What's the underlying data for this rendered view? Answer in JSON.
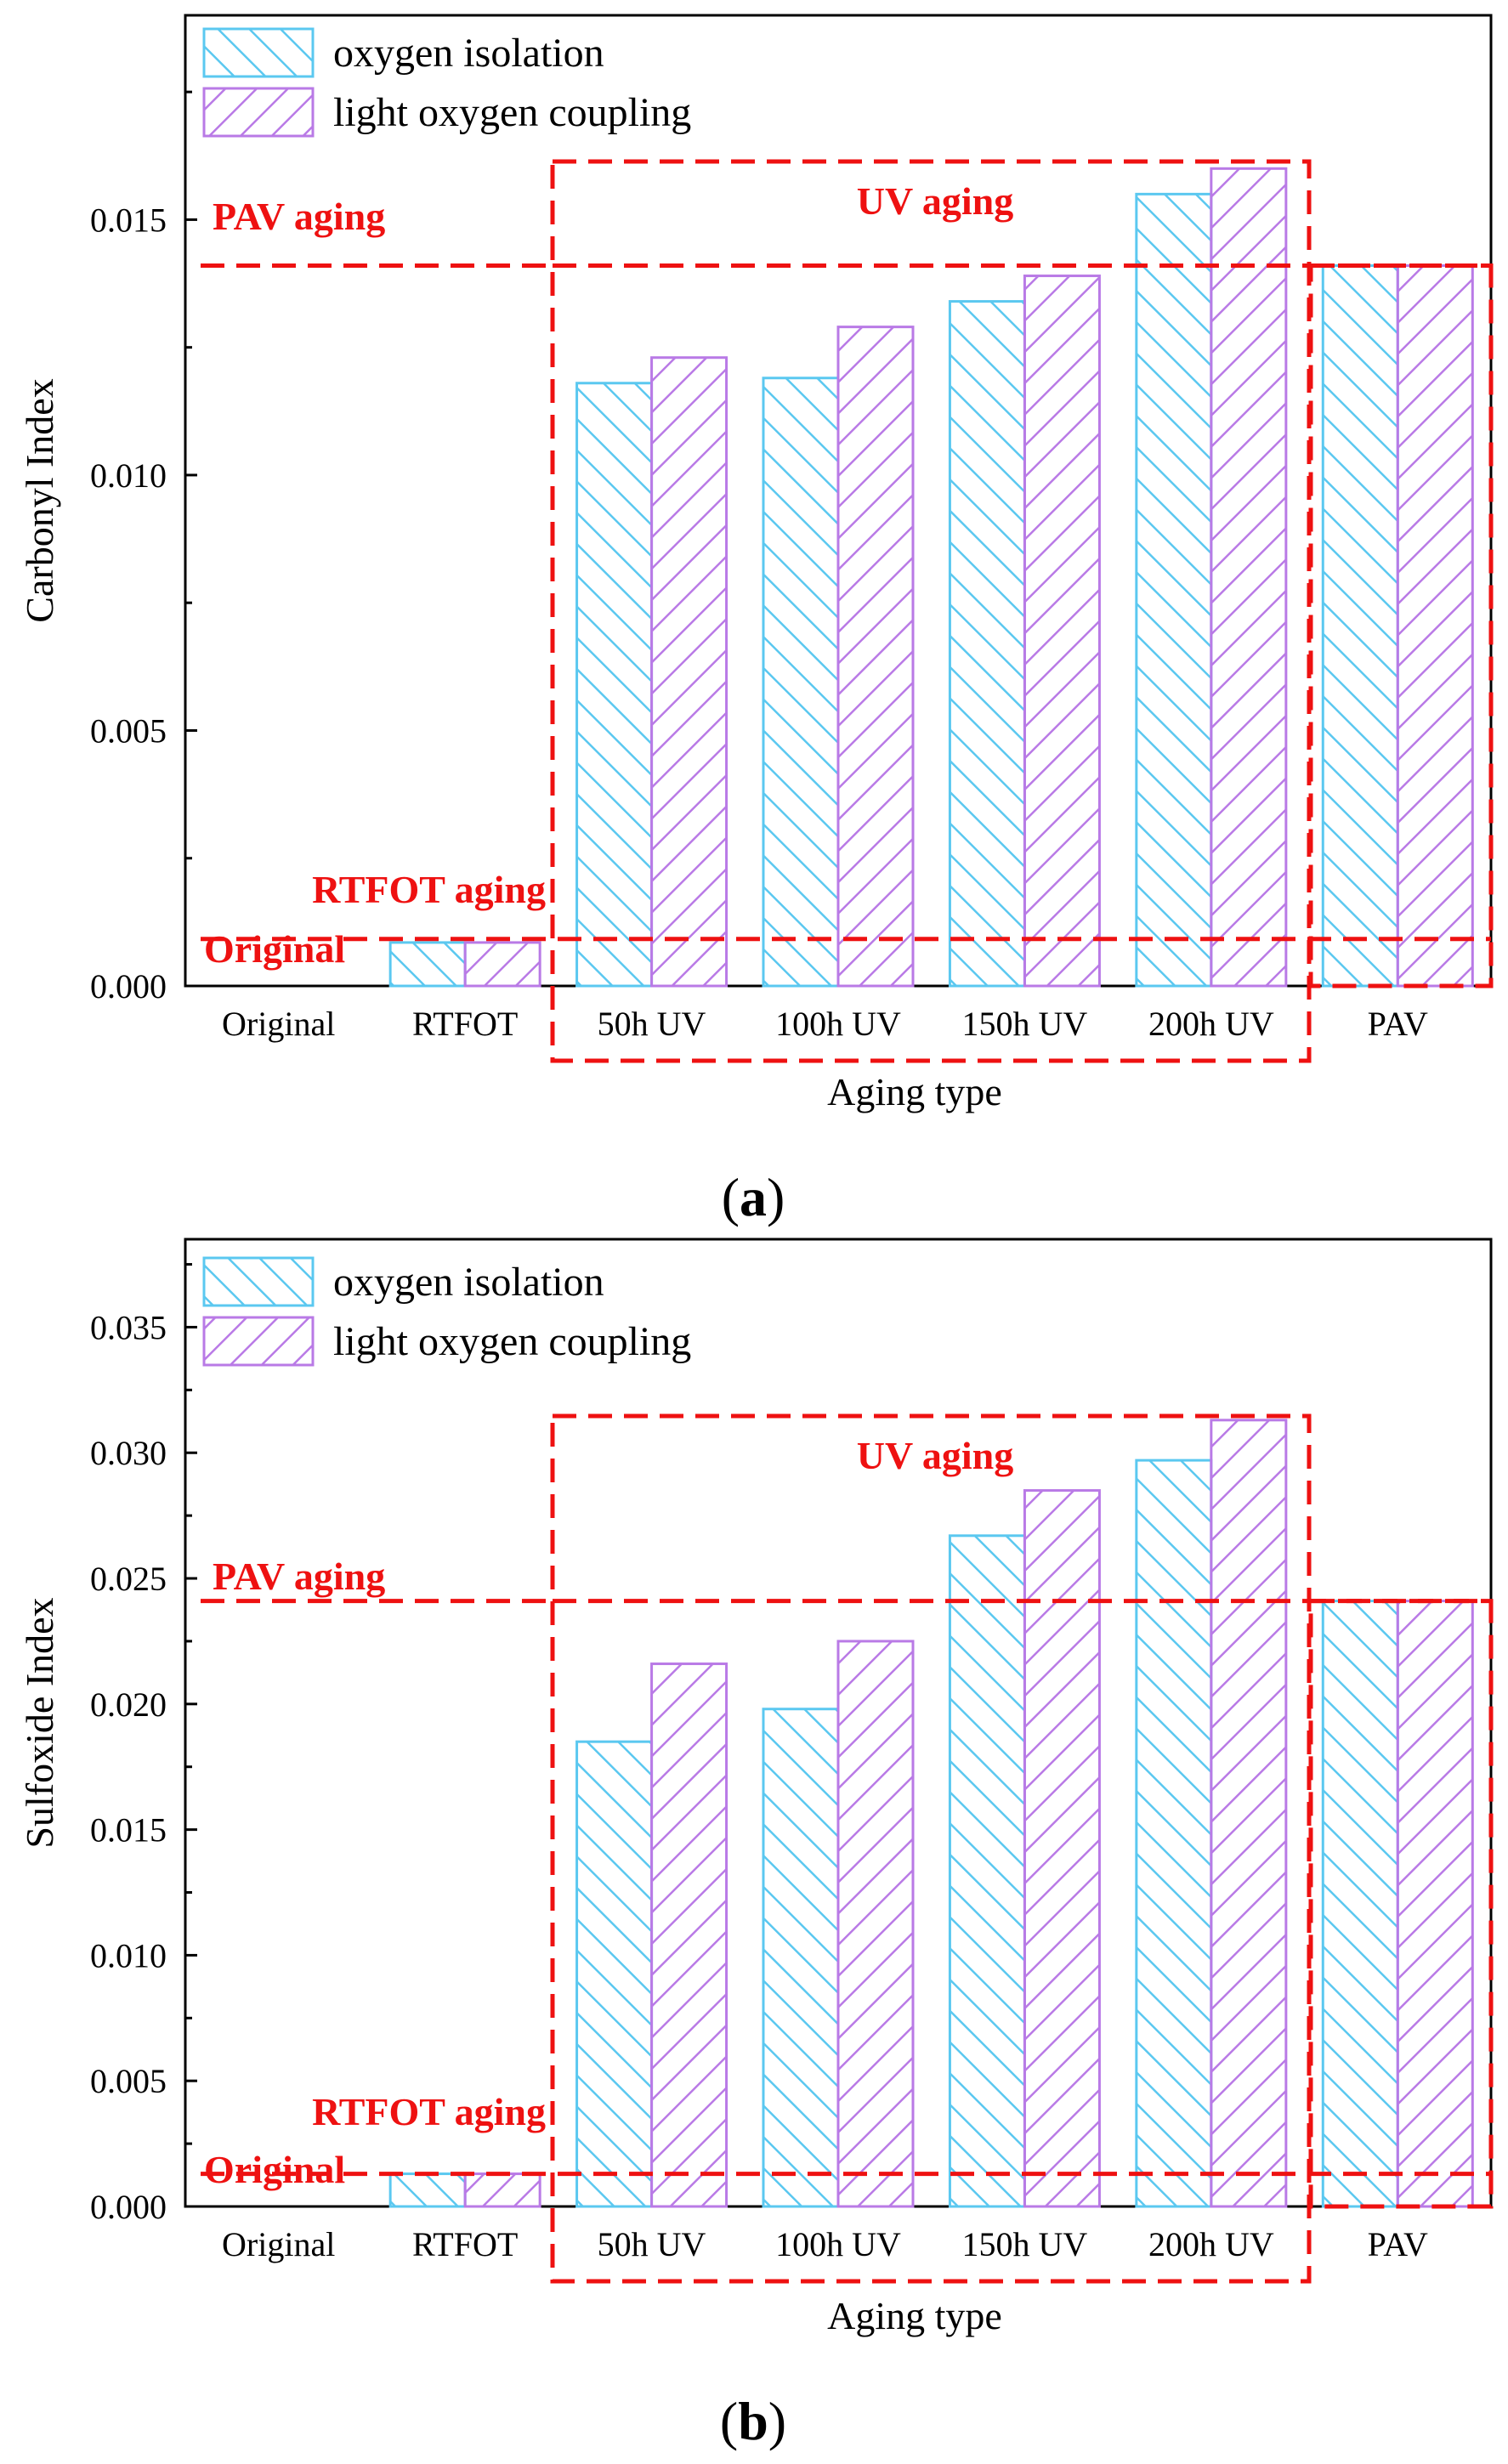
{
  "colors": {
    "oxygen_isolation": "#5bc8f0",
    "light_oxygen_coupling": "#b97ae6",
    "annotation": "#ee1111",
    "axis": "#000000"
  },
  "chart_data": [
    {
      "panel_label": "a",
      "type": "bar",
      "xlabel": "Aging type",
      "ylabel": "Carbonyl Index",
      "ylim": [
        0,
        0.019
      ],
      "yticks": [
        "0.000",
        "0.005",
        "0.010",
        "0.015"
      ],
      "ytick_values": [
        0,
        0.005,
        0.01,
        0.015
      ],
      "categories": [
        "Original",
        "RTFOT",
        "50h UV",
        "100h UV",
        "150h UV",
        "200h UV",
        "PAV"
      ],
      "series": [
        {
          "name": "oxygen isolation",
          "values": [
            0,
            0.00085,
            0.0118,
            0.0119,
            0.0134,
            0.0155,
            0.0141
          ]
        },
        {
          "name": "light oxygen coupling",
          "values": [
            0,
            0.00085,
            0.0123,
            0.0129,
            0.0139,
            0.016,
            0.0141
          ]
        }
      ],
      "legend": [
        "oxygen isolation",
        "light oxygen coupling"
      ],
      "legend_position": "top-left",
      "annotations": {
        "pav_aging": {
          "text": "PAV aging",
          "value": 0.0141
        },
        "uv_aging": {
          "text": "UV aging"
        },
        "rtfot_aging": {
          "text": "RTFOT aging"
        },
        "original": {
          "text": "Original",
          "value": 0.00092
        }
      }
    },
    {
      "panel_label": "b",
      "type": "bar",
      "xlabel": "Aging type",
      "ylabel": "Sulfoxide Index",
      "ylim": [
        0,
        0.0385
      ],
      "yticks": [
        "0.000",
        "0.005",
        "0.010",
        "0.015",
        "0.020",
        "0.025",
        "0.030",
        "0.035"
      ],
      "ytick_values": [
        0,
        0.005,
        0.01,
        0.015,
        0.02,
        0.025,
        0.03,
        0.035
      ],
      "categories": [
        "Original",
        "RTFOT",
        "50h UV",
        "100h UV",
        "150h UV",
        "200h UV",
        "PAV"
      ],
      "series": [
        {
          "name": "oxygen isolation",
          "values": [
            0,
            0.0013,
            0.0185,
            0.0198,
            0.0267,
            0.0297,
            0.0241
          ]
        },
        {
          "name": "light oxygen coupling",
          "values": [
            0,
            0.0013,
            0.0216,
            0.0225,
            0.0285,
            0.0313,
            0.0241
          ]
        }
      ],
      "legend": [
        "oxygen isolation",
        "light oxygen coupling"
      ],
      "legend_position": "top-left",
      "annotations": {
        "pav_aging": {
          "text": "PAV aging",
          "value": 0.0241
        },
        "uv_aging": {
          "text": "UV aging"
        },
        "rtfot_aging": {
          "text": "RTFOT aging"
        },
        "original": {
          "text": "Original",
          "value": 0.0013
        }
      }
    }
  ]
}
